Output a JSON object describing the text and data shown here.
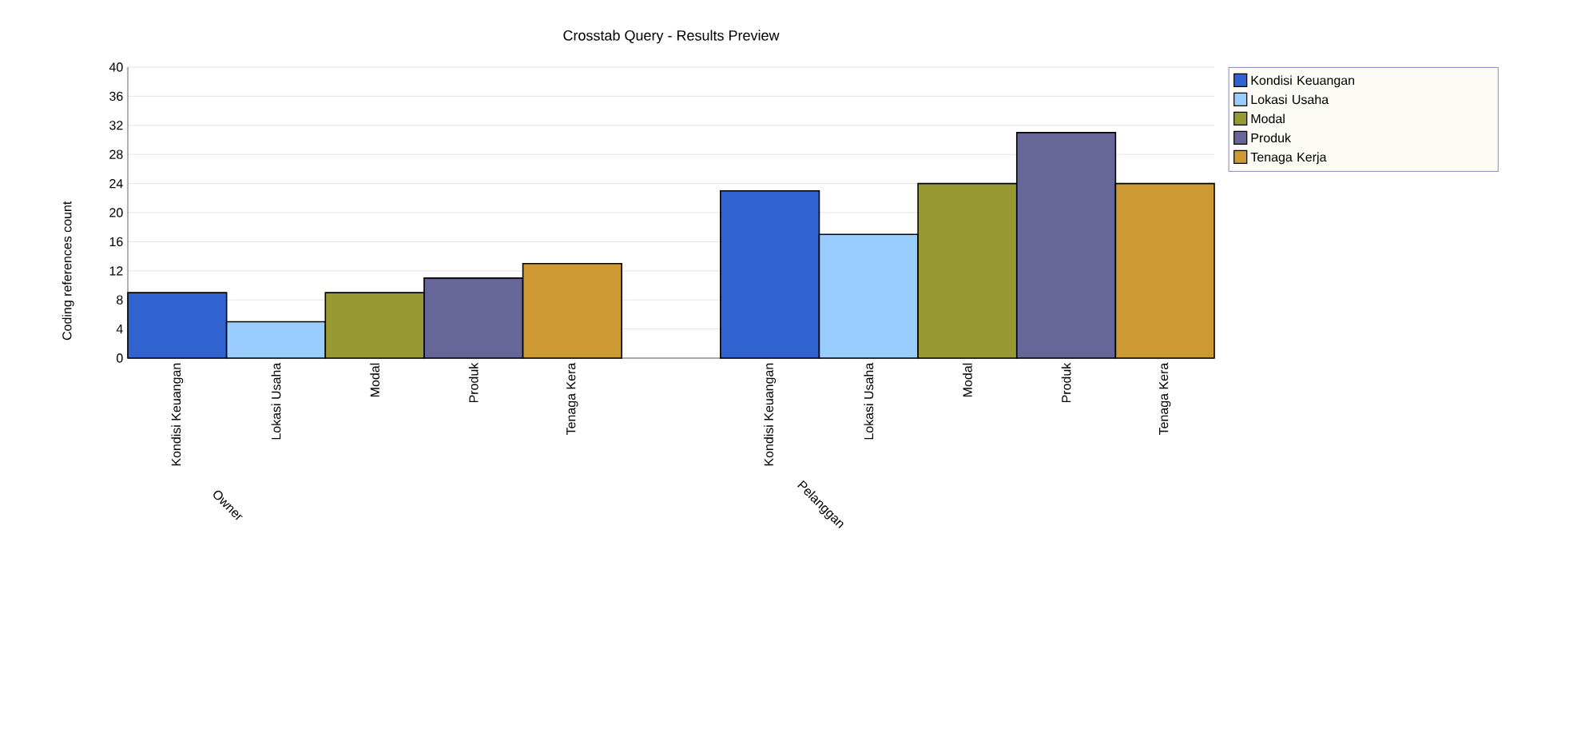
{
  "chart_data": {
    "type": "bar",
    "title": "Crosstab Query - Results Preview",
    "ylabel": "Coding references count",
    "categories": [
      "Kondisi Keuangan",
      "Lokasi Usaha",
      "Modal",
      "Produk",
      "Tenaga Kera",
      null,
      "Kondisi Keuangan",
      "Lokasi Usaha",
      "Modal",
      "Produk",
      "Tenaga Kera"
    ],
    "series": [
      {
        "name": "Kondisi Keuangan",
        "color": "#3063cf",
        "values": [
          9,
          null,
          null,
          null,
          null,
          null,
          23,
          null,
          null,
          null,
          null
        ]
      },
      {
        "name": "Lokasi Usaha",
        "color": "#99ccff",
        "values": [
          null,
          5,
          null,
          null,
          null,
          null,
          null,
          17,
          null,
          null,
          null
        ]
      },
      {
        "name": "Modal",
        "color": "#999933",
        "values": [
          null,
          null,
          9,
          null,
          null,
          null,
          null,
          null,
          24,
          null,
          null
        ]
      },
      {
        "name": "Produk",
        "color": "#666699",
        "values": [
          null,
          null,
          null,
          11,
          null,
          null,
          null,
          null,
          null,
          31,
          null
        ]
      },
      {
        "name": "Tenaga Kerja",
        "color": "#cc9933",
        "values": [
          null,
          null,
          null,
          null,
          13,
          null,
          null,
          null,
          null,
          null,
          24
        ]
      }
    ],
    "annotations": [
      "Owner",
      "Pelanggan"
    ],
    "ylim": [
      0,
      40
    ],
    "yticks": [
      0,
      4,
      8,
      12,
      16,
      20,
      24,
      28,
      32,
      36,
      40
    ],
    "grid": "y",
    "legend": "right"
  }
}
